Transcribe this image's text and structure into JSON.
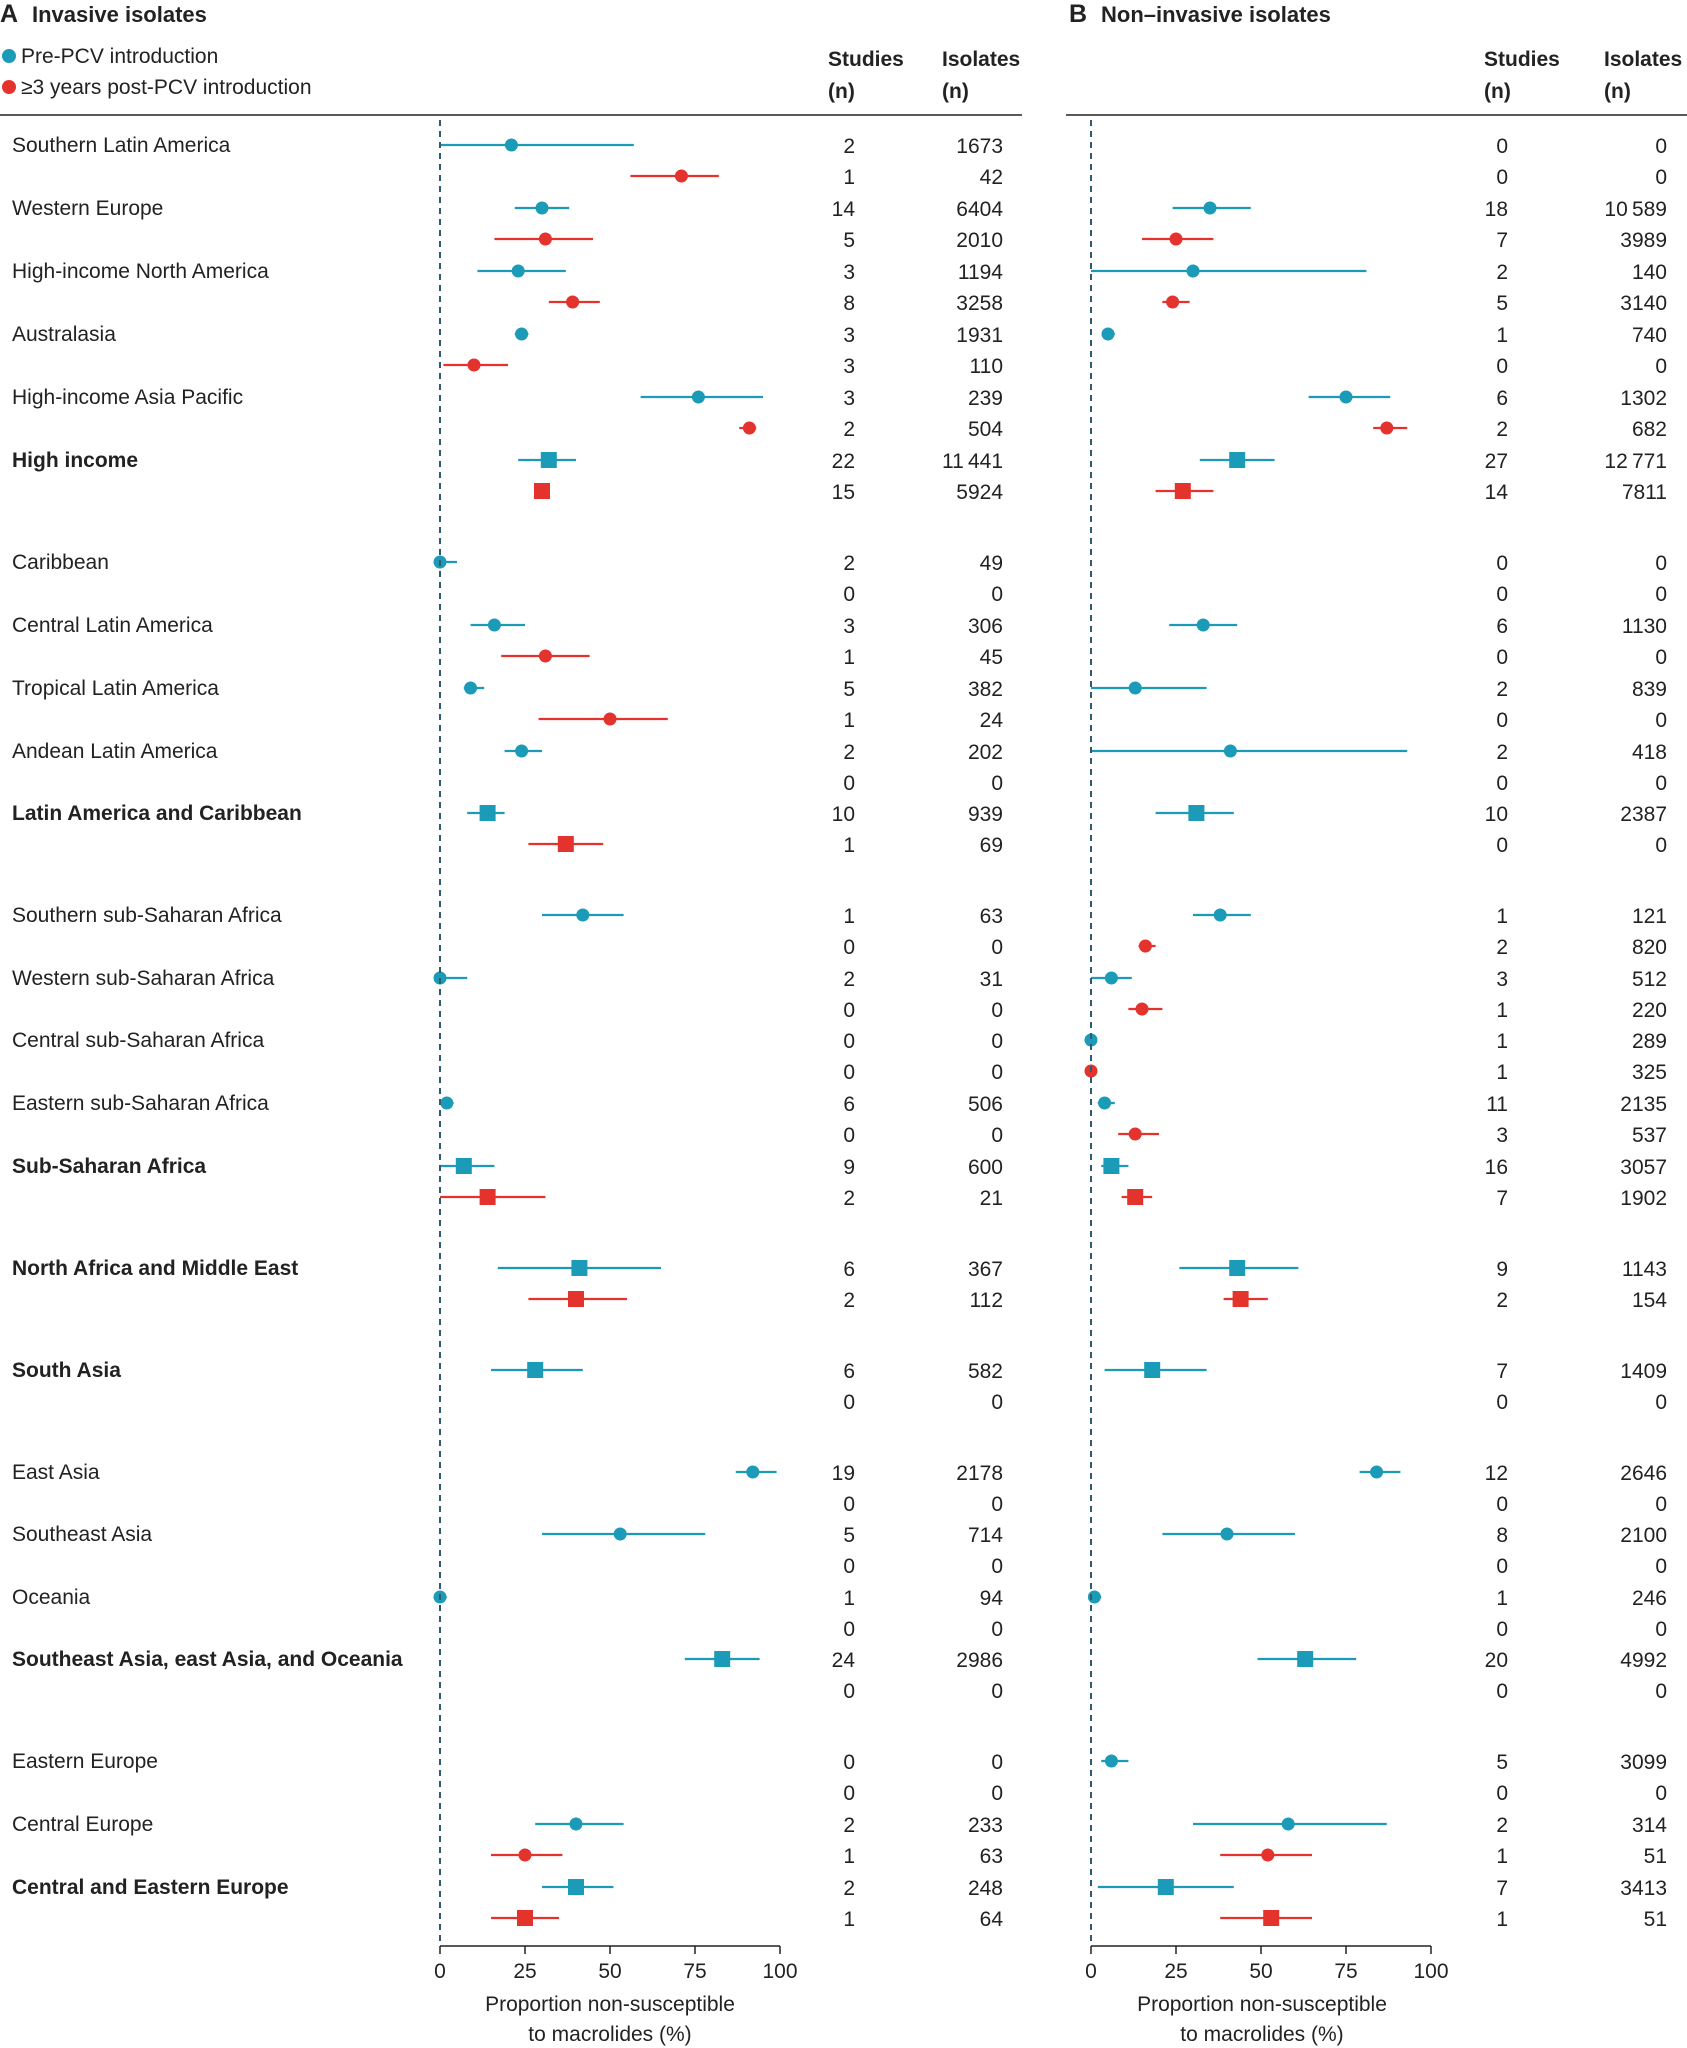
{
  "legend": {
    "pre": {
      "label": "Pre-PCV introduction",
      "color": "#1b9bb8"
    },
    "post": {
      "label": "≥3 years post-PCV introduction",
      "color": "#e4332d"
    }
  },
  "headers": {
    "studies": [
      "Studies",
      "(n)"
    ],
    "isolates": [
      "Isolates",
      "(n)"
    ]
  },
  "panels": [
    {
      "letter": "A",
      "title": "Invasive isolates"
    },
    {
      "letter": "B",
      "title": "Non–invasive isolates"
    }
  ],
  "chart_data": {
    "type": "forest",
    "xlabel": [
      "Proportion non-susceptible",
      "to macrolides (%)"
    ],
    "xlim": [
      0,
      100
    ],
    "xticks": [
      0,
      25,
      50,
      75,
      100
    ],
    "reference_line": 0,
    "series_names": [
      "Pre-PCV introduction",
      "≥3 years post-PCV introduction"
    ],
    "rows": [
      {
        "region": "Southern Latin America",
        "bold": false,
        "A": {
          "pre": [
            21,
            0,
            57,
            2,
            1673
          ],
          "post": [
            71,
            56,
            82,
            1,
            42
          ]
        },
        "B": {
          "pre": [
            null,
            null,
            null,
            0,
            0
          ],
          "post": [
            null,
            null,
            null,
            0,
            0
          ]
        }
      },
      {
        "region": "Western Europe",
        "bold": false,
        "A": {
          "pre": [
            30,
            22,
            38,
            14,
            6404
          ],
          "post": [
            31,
            16,
            45,
            5,
            2010
          ]
        },
        "B": {
          "pre": [
            35,
            24,
            47,
            18,
            10589
          ],
          "post": [
            25,
            15,
            36,
            7,
            3989
          ]
        }
      },
      {
        "region": "High-income North America",
        "bold": false,
        "A": {
          "pre": [
            23,
            11,
            37,
            3,
            1194
          ],
          "post": [
            39,
            32,
            47,
            8,
            3258
          ]
        },
        "B": {
          "pre": [
            30,
            0,
            81,
            2,
            140
          ],
          "post": [
            24,
            21,
            29,
            5,
            3140
          ]
        }
      },
      {
        "region": "Australasia",
        "bold": false,
        "A": {
          "pre": [
            24,
            22,
            26,
            3,
            1931
          ],
          "post": [
            10,
            1,
            20,
            3,
            110
          ]
        },
        "B": {
          "pre": [
            5,
            4,
            7,
            1,
            740
          ],
          "post": [
            null,
            null,
            null,
            0,
            0
          ]
        }
      },
      {
        "region": "High-income Asia Pacific",
        "bold": false,
        "A": {
          "pre": [
            76,
            59,
            95,
            3,
            239
          ],
          "post": [
            91,
            88,
            93,
            2,
            504
          ]
        },
        "B": {
          "pre": [
            75,
            64,
            88,
            6,
            1302
          ],
          "post": [
            87,
            83,
            93,
            2,
            682
          ]
        }
      },
      {
        "region": "High income",
        "bold": true,
        "A": {
          "pre": [
            32,
            23,
            40,
            22,
            11441
          ],
          "post": [
            30,
            28,
            32,
            15,
            5924
          ]
        },
        "B": {
          "pre": [
            43,
            32,
            54,
            27,
            12771
          ],
          "post": [
            27,
            19,
            36,
            14,
            7811
          ]
        }
      },
      {
        "region": "Caribbean",
        "bold": false,
        "A": {
          "pre": [
            0,
            0,
            5,
            2,
            49
          ],
          "post": [
            null,
            null,
            null,
            0,
            0
          ]
        },
        "B": {
          "pre": [
            null,
            null,
            null,
            0,
            0
          ],
          "post": [
            null,
            null,
            null,
            0,
            0
          ]
        }
      },
      {
        "region": "Central Latin America",
        "bold": false,
        "A": {
          "pre": [
            16,
            9,
            25,
            3,
            306
          ],
          "post": [
            31,
            18,
            44,
            1,
            45
          ]
        },
        "B": {
          "pre": [
            33,
            23,
            43,
            6,
            1130
          ],
          "post": [
            null,
            null,
            null,
            0,
            0
          ]
        }
      },
      {
        "region": "Tropical Latin America",
        "bold": false,
        "A": {
          "pre": [
            9,
            7,
            13,
            5,
            382
          ],
          "post": [
            50,
            29,
            67,
            1,
            24
          ]
        },
        "B": {
          "pre": [
            13,
            0,
            34,
            2,
            839
          ],
          "post": [
            null,
            null,
            null,
            0,
            0
          ]
        }
      },
      {
        "region": "Andean Latin America",
        "bold": false,
        "A": {
          "pre": [
            24,
            19,
            30,
            2,
            202
          ],
          "post": [
            null,
            null,
            null,
            0,
            0
          ]
        },
        "B": {
          "pre": [
            41,
            0,
            93,
            2,
            418
          ],
          "post": [
            null,
            null,
            null,
            0,
            0
          ]
        }
      },
      {
        "region": "Latin America and Caribbean",
        "bold": true,
        "A": {
          "pre": [
            14,
            8,
            19,
            10,
            939
          ],
          "post": [
            37,
            26,
            48,
            1,
            69
          ]
        },
        "B": {
          "pre": [
            31,
            19,
            42,
            10,
            2387
          ],
          "post": [
            null,
            null,
            null,
            0,
            0
          ]
        }
      },
      {
        "region": "Southern sub-Saharan Africa",
        "bold": false,
        "A": {
          "pre": [
            42,
            30,
            54,
            1,
            63
          ],
          "post": [
            null,
            null,
            null,
            0,
            0
          ]
        },
        "B": {
          "pre": [
            38,
            30,
            47,
            1,
            121
          ],
          "post": [
            16,
            14,
            19,
            2,
            820
          ]
        }
      },
      {
        "region": "Western sub-Saharan Africa",
        "bold": false,
        "A": {
          "pre": [
            0,
            0,
            8,
            2,
            31
          ],
          "post": [
            null,
            null,
            null,
            0,
            0
          ]
        },
        "B": {
          "pre": [
            6,
            0,
            12,
            3,
            512
          ],
          "post": [
            15,
            11,
            21,
            1,
            220
          ]
        }
      },
      {
        "region": "Central sub-Saharan Africa",
        "bold": false,
        "A": {
          "pre": [
            null,
            null,
            null,
            0,
            0
          ],
          "post": [
            null,
            null,
            null,
            0,
            0
          ]
        },
        "B": {
          "pre": [
            0,
            0,
            1,
            1,
            289
          ],
          "post": [
            0,
            0,
            1,
            1,
            325
          ]
        }
      },
      {
        "region": "Eastern sub-Saharan Africa",
        "bold": false,
        "A": {
          "pre": [
            2,
            1,
            4,
            6,
            506
          ],
          "post": [
            null,
            null,
            null,
            0,
            0
          ]
        },
        "B": {
          "pre": [
            4,
            2,
            7,
            11,
            2135
          ],
          "post": [
            13,
            8,
            20,
            3,
            537
          ]
        }
      },
      {
        "region": "Sub-Saharan Africa",
        "bold": true,
        "A": {
          "pre": [
            7,
            0,
            16,
            9,
            600
          ],
          "post": [
            14,
            0,
            31,
            2,
            21
          ]
        },
        "B": {
          "pre": [
            6,
            3,
            11,
            16,
            3057
          ],
          "post": [
            13,
            9,
            18,
            7,
            1902
          ]
        }
      },
      {
        "region": "North Africa and Middle East",
        "bold": true,
        "A": {
          "pre": [
            41,
            17,
            65,
            6,
            367
          ],
          "post": [
            40,
            26,
            55,
            2,
            112
          ]
        },
        "B": {
          "pre": [
            43,
            26,
            61,
            9,
            1143
          ],
          "post": [
            44,
            39,
            52,
            2,
            154
          ]
        }
      },
      {
        "region": "South Asia",
        "bold": true,
        "A": {
          "pre": [
            28,
            15,
            42,
            6,
            582
          ],
          "post": [
            null,
            null,
            null,
            0,
            0
          ]
        },
        "B": {
          "pre": [
            18,
            4,
            34,
            7,
            1409
          ],
          "post": [
            null,
            null,
            null,
            0,
            0
          ]
        }
      },
      {
        "region": "East Asia",
        "bold": false,
        "A": {
          "pre": [
            92,
            87,
            99,
            19,
            2178
          ],
          "post": [
            null,
            null,
            null,
            0,
            0
          ]
        },
        "B": {
          "pre": [
            84,
            79,
            91,
            12,
            2646
          ],
          "post": [
            null,
            null,
            null,
            0,
            0
          ]
        }
      },
      {
        "region": "Southeast Asia",
        "bold": false,
        "A": {
          "pre": [
            53,
            30,
            78,
            5,
            714
          ],
          "post": [
            null,
            null,
            null,
            0,
            0
          ]
        },
        "B": {
          "pre": [
            40,
            21,
            60,
            8,
            2100
          ],
          "post": [
            null,
            null,
            null,
            0,
            0
          ]
        }
      },
      {
        "region": "Oceania",
        "bold": false,
        "A": {
          "pre": [
            0,
            0,
            2,
            1,
            94
          ],
          "post": [
            null,
            null,
            null,
            0,
            0
          ]
        },
        "B": {
          "pre": [
            1,
            0,
            3,
            1,
            246
          ],
          "post": [
            null,
            null,
            null,
            0,
            0
          ]
        }
      },
      {
        "region": "Southeast Asia, east Asia, and Oceania",
        "bold": true,
        "A": {
          "pre": [
            83,
            72,
            94,
            24,
            2986
          ],
          "post": [
            null,
            null,
            null,
            0,
            0
          ]
        },
        "B": {
          "pre": [
            63,
            49,
            78,
            20,
            4992
          ],
          "post": [
            null,
            null,
            null,
            0,
            0
          ]
        }
      },
      {
        "region": "Eastern Europe",
        "bold": false,
        "A": {
          "pre": [
            null,
            null,
            null,
            0,
            0
          ],
          "post": [
            null,
            null,
            null,
            0,
            0
          ]
        },
        "B": {
          "pre": [
            6,
            3,
            11,
            5,
            3099
          ],
          "post": [
            null,
            null,
            null,
            0,
            0
          ]
        }
      },
      {
        "region": "Central Europe",
        "bold": false,
        "A": {
          "pre": [
            40,
            28,
            54,
            2,
            233
          ],
          "post": [
            25,
            15,
            36,
            1,
            63
          ]
        },
        "B": {
          "pre": [
            58,
            30,
            87,
            2,
            314
          ],
          "post": [
            52,
            38,
            65,
            1,
            51
          ]
        }
      },
      {
        "region": "Central and Eastern Europe",
        "bold": true,
        "A": {
          "pre": [
            40,
            30,
            51,
            2,
            248
          ],
          "post": [
            25,
            15,
            35,
            1,
            64
          ]
        },
        "B": {
          "pre": [
            22,
            2,
            42,
            7,
            3413
          ],
          "post": [
            53,
            38,
            65,
            1,
            51
          ]
        }
      }
    ]
  }
}
